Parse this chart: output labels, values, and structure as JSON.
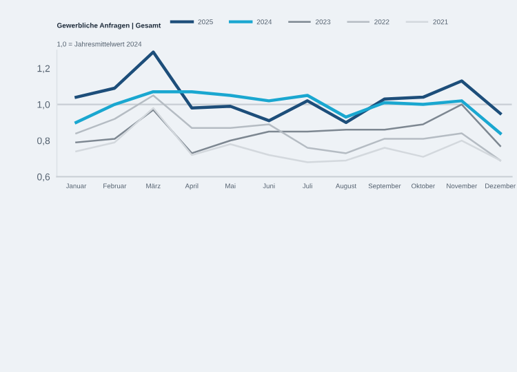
{
  "chart_data": {
    "type": "line",
    "title": "Gewerbliche Anfragen | Gesamt",
    "subtitle": "1,0 = Jahresmittelwert 2024",
    "categories": [
      "Januar",
      "Februar",
      "März",
      "April",
      "Mai",
      "Juni",
      "Juli",
      "August",
      "September",
      "Oktober",
      "November",
      "Dezember"
    ],
    "series": [
      {
        "name": "2025",
        "color": "#1d4e7a",
        "values": [
          1.04,
          1.09,
          1.29,
          0.98,
          0.99,
          0.91,
          1.02,
          0.9,
          1.03,
          1.04,
          1.13,
          0.95
        ]
      },
      {
        "name": "2024",
        "color": "#1aa7d0",
        "values": [
          0.9,
          1.0,
          1.07,
          1.07,
          1.05,
          1.02,
          1.05,
          0.93,
          1.01,
          1.0,
          1.02,
          0.84
        ]
      },
      {
        "name": "2023",
        "color": "#7d8791",
        "values": [
          0.79,
          0.81,
          0.97,
          0.73,
          0.8,
          0.85,
          0.85,
          0.86,
          0.86,
          0.89,
          1.0,
          0.77
        ]
      },
      {
        "name": "2022",
        "color": "#b5bcc3",
        "values": [
          0.84,
          0.92,
          1.05,
          0.87,
          0.87,
          0.89,
          0.76,
          0.73,
          0.81,
          0.81,
          0.84,
          0.69
        ]
      },
      {
        "name": "2021",
        "color": "#d3d8dd",
        "values": [
          0.74,
          0.79,
          0.98,
          0.72,
          0.78,
          0.72,
          0.68,
          0.69,
          0.76,
          0.71,
          0.8,
          0.69
        ]
      }
    ],
    "ylim": [
      0.6,
      1.3
    ],
    "yticks": [
      {
        "value": 0.6,
        "label": "0,6"
      },
      {
        "value": 0.8,
        "label": "0,8"
      },
      {
        "value": 1.0,
        "label": "1,0"
      },
      {
        "value": 1.2,
        "label": "1,2"
      }
    ],
    "ref_lines": [
      {
        "axis": "y",
        "value": 1.0,
        "color": "#c8ced4"
      }
    ],
    "grid": false,
    "legend": "top right"
  }
}
